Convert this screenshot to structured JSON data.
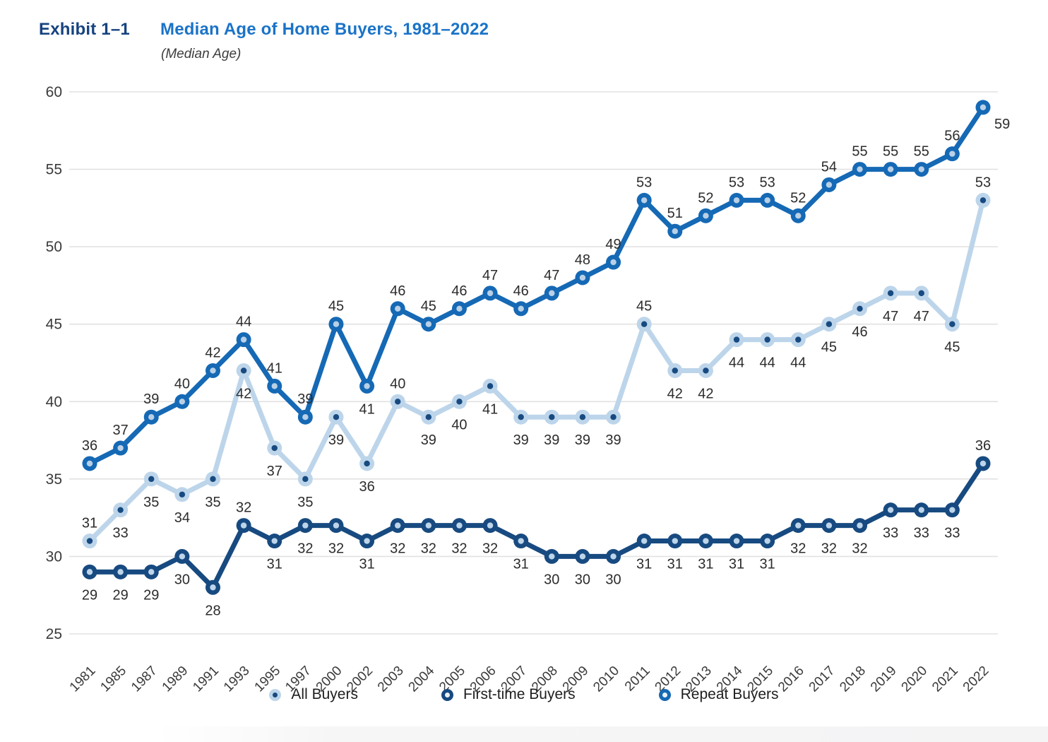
{
  "header": {
    "exhibit_label": "Exhibit 1–1",
    "title": "Median Age of Home Buyers, 1981–2022",
    "subtitle": "(Median Age)"
  },
  "colors": {
    "grid": "#e2e2e2",
    "axis_text": "#3a3a3a",
    "data_label_text": "#2c2c2c",
    "exhibit_label": "#16437f",
    "chart_title": "#1a73c8"
  },
  "chart_data": {
    "type": "line",
    "title": "Median Age of Home Buyers, 1981–2022",
    "subtitle": "(Median Age)",
    "categories": [
      "1981",
      "1985",
      "1987",
      "1989",
      "1991",
      "1993",
      "1995",
      "1997",
      "2000",
      "2002",
      "2003",
      "2004",
      "2005",
      "2006",
      "2007",
      "2008",
      "2009",
      "2010",
      "2011",
      "2012",
      "2013",
      "2014",
      "2015",
      "2016",
      "2017",
      "2018",
      "2019",
      "2020",
      "2021",
      "2022"
    ],
    "ylim": [
      25,
      60
    ],
    "yticks": [
      25,
      30,
      35,
      40,
      45,
      50,
      55,
      60
    ],
    "grid": true,
    "legend_position": "bottom",
    "series": [
      {
        "name": "All Buyers",
        "color": "#bdd5ea",
        "marker_center": "#174a80",
        "values": [
          31,
          33,
          35,
          34,
          35,
          42,
          37,
          35,
          39,
          36,
          40,
          39,
          40,
          41,
          39,
          39,
          39,
          39,
          45,
          42,
          42,
          44,
          44,
          44,
          45,
          46,
          47,
          47,
          45,
          53
        ],
        "label_pos": [
          "a",
          "b",
          "b",
          "b",
          "b",
          "b",
          "b",
          "b",
          "b",
          "b",
          "a",
          "b",
          "b",
          "b",
          "b",
          "b",
          "b",
          "b",
          "a",
          "b",
          "b",
          "b",
          "b",
          "b",
          "b",
          "b",
          "b",
          "b",
          "b",
          "a"
        ]
      },
      {
        "name": "First-time Buyers",
        "color": "#174a80",
        "marker_center": "#bdd5ea",
        "values": [
          29,
          29,
          29,
          30,
          28,
          32,
          31,
          32,
          32,
          31,
          32,
          32,
          32,
          32,
          31,
          30,
          30,
          30,
          31,
          31,
          31,
          31,
          31,
          32,
          32,
          32,
          33,
          33,
          33,
          36
        ],
        "label_pos": [
          "b",
          "b",
          "b",
          "b",
          "b",
          "a",
          "b",
          "b",
          "b",
          "b",
          "b",
          "b",
          "b",
          "b",
          "b",
          "b",
          "b",
          "b",
          "b",
          "b",
          "b",
          "b",
          "b",
          "b",
          "b",
          "b",
          "b",
          "b",
          "b",
          "a"
        ]
      },
      {
        "name": "Repeat Buyers",
        "color": "#1569b5",
        "marker_center": "#b9d0e6",
        "values": [
          36,
          37,
          39,
          40,
          42,
          44,
          41,
          39,
          45,
          41,
          46,
          45,
          46,
          47,
          46,
          47,
          48,
          49,
          53,
          51,
          52,
          53,
          53,
          52,
          54,
          55,
          55,
          55,
          56,
          59
        ],
        "label_pos": [
          "a",
          "a",
          "a",
          "a",
          "a",
          "a",
          "a",
          "a",
          "a",
          "b",
          "a",
          "a",
          "a",
          "a",
          "a",
          "a",
          "a",
          "a",
          "a",
          "a",
          "a",
          "a",
          "a",
          "a",
          "a",
          "a",
          "a",
          "a",
          "a",
          "r"
        ]
      }
    ]
  },
  "legend": {
    "items": [
      {
        "label": "All Buyers"
      },
      {
        "label": "First-time Buyers"
      },
      {
        "label": "Repeat Buyers"
      }
    ]
  }
}
